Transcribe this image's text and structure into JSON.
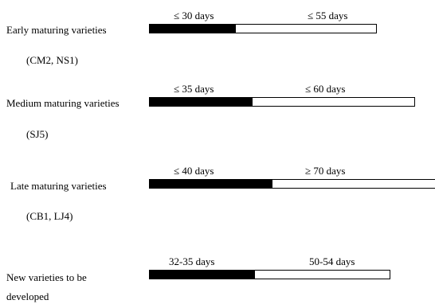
{
  "groups": [
    {
      "label": "Early maturing varieties",
      "sub": "(CM2, NS1)",
      "phase1": "≤  30 days",
      "phase2": "≤ 55 days",
      "filled_fraction": 0.38
    },
    {
      "label": "Medium maturing varieties",
      "sub": "(SJ5)",
      "phase1": "≤  35 days",
      "phase2": "≤  60 days",
      "filled_fraction": 0.39
    },
    {
      "label": "Late maturing varieties",
      "sub": "(CB1, LJ4)",
      "phase1": "≤  40 days",
      "phase2": "≥  70 days",
      "filled_fraction": 0.43
    },
    {
      "label": "New varieties to be",
      "sub": "developed",
      "phase1": "32-35 days",
      "phase2": "50-54 days",
      "filled_fraction": 0.44
    }
  ]
}
